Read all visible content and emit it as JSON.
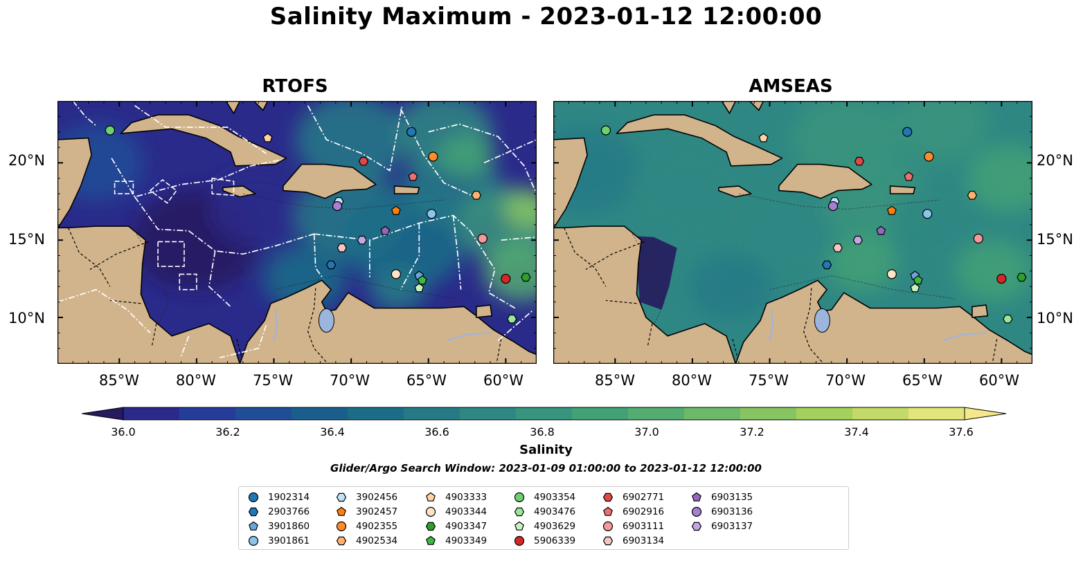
{
  "title": "Salinity Maximum - 2023-01-12 12:00:00",
  "panels": [
    {
      "title": "RTOFS"
    },
    {
      "title": "AMSEAS"
    }
  ],
  "axes": {
    "lon_ticks": [
      "85°W",
      "80°W",
      "75°W",
      "70°W",
      "65°W",
      "60°W"
    ],
    "lat_ticks": [
      "20°N",
      "15°N",
      "10°N"
    ],
    "lon_range": [
      -89,
      -58
    ],
    "lat_range": [
      7,
      24
    ]
  },
  "colorbar": {
    "label": "Salinity",
    "ticks": [
      "36.0",
      "36.2",
      "36.4",
      "36.6",
      "36.8",
      "37.0",
      "37.2",
      "37.4",
      "37.6"
    ],
    "range": [
      35.9,
      37.7
    ],
    "colormap": [
      "#271a5e",
      "#2a2a8a",
      "#253c9a",
      "#1f4e97",
      "#195e8c",
      "#1b6d87",
      "#267a86",
      "#2f8783",
      "#38947d",
      "#43a176",
      "#53ad71",
      "#6bb969",
      "#86c561",
      "#a4d05d",
      "#c3da69",
      "#e3e47b",
      "#f5e88a"
    ]
  },
  "search_window": "Glider/Argo Search Window: 2023-01-09 01:00:00 to 2023-01-12 12:00:00",
  "legend": [
    {
      "id": "1902314",
      "marker": "circle",
      "color": "#1f77b4"
    },
    {
      "id": "2903766",
      "marker": "hexagon",
      "color": "#1f77b4"
    },
    {
      "id": "3901860",
      "marker": "pentagon",
      "color": "#6aa6da"
    },
    {
      "id": "3901861",
      "marker": "circle",
      "color": "#8ec4ea"
    },
    {
      "id": "3902456",
      "marker": "hexagon",
      "color": "#bfe4f7"
    },
    {
      "id": "3902457",
      "marker": "pentagon",
      "color": "#ff7f0e"
    },
    {
      "id": "4902355",
      "marker": "circle",
      "color": "#ff8c2a"
    },
    {
      "id": "4902534",
      "marker": "hexagon",
      "color": "#ffb26e"
    },
    {
      "id": "4903333",
      "marker": "pentagon",
      "color": "#ffd3a5"
    },
    {
      "id": "4903344",
      "marker": "circle",
      "color": "#ffe3c6"
    },
    {
      "id": "4903347",
      "marker": "hexagon",
      "color": "#2ca02c"
    },
    {
      "id": "4903349",
      "marker": "pentagon",
      "color": "#3fb83f"
    },
    {
      "id": "4903354",
      "marker": "circle",
      "color": "#6fd06f"
    },
    {
      "id": "4903476",
      "marker": "hexagon",
      "color": "#98e898"
    },
    {
      "id": "4903629",
      "marker": "pentagon",
      "color": "#c7f2c0"
    },
    {
      "id": "5906339",
      "marker": "circle",
      "color": "#d62728"
    },
    {
      "id": "6902771",
      "marker": "hexagon",
      "color": "#e04848"
    },
    {
      "id": "6902916",
      "marker": "pentagon",
      "color": "#ef6f6f"
    },
    {
      "id": "6903111",
      "marker": "circle",
      "color": "#f59a9a"
    },
    {
      "id": "6903134",
      "marker": "hexagon",
      "color": "#f9c4c4"
    },
    {
      "id": "6903135",
      "marker": "pentagon",
      "color": "#9467bd"
    },
    {
      "id": "6903136",
      "marker": "circle",
      "color": "#a57fd0"
    },
    {
      "id": "6903137",
      "marker": "hexagon",
      "color": "#c3a6e6"
    }
  ],
  "floats": [
    {
      "id": "4903354",
      "lon": -85.6,
      "lat": 22.1
    },
    {
      "id": "4903333",
      "lon": -75.4,
      "lat": 21.6
    },
    {
      "id": "1902314",
      "lon": -66.1,
      "lat": 22.0
    },
    {
      "id": "4902355",
      "lon": -64.7,
      "lat": 20.4
    },
    {
      "id": "6902771",
      "lon": -69.2,
      "lat": 20.1
    },
    {
      "id": "6902916",
      "lon": -66.0,
      "lat": 19.1
    },
    {
      "id": "4902534",
      "lon": -61.9,
      "lat": 17.9
    },
    {
      "id": "3902457",
      "lon": -67.1,
      "lat": 16.9
    },
    {
      "id": "3902456",
      "lon": -70.8,
      "lat": 17.5
    },
    {
      "id": "6903136",
      "lon": -70.9,
      "lat": 17.2
    },
    {
      "id": "3901861",
      "lon": -64.8,
      "lat": 16.7
    },
    {
      "id": "6903135",
      "lon": -67.8,
      "lat": 15.6
    },
    {
      "id": "6903137",
      "lon": -69.3,
      "lat": 15.0
    },
    {
      "id": "6903111",
      "lon": -61.5,
      "lat": 15.1
    },
    {
      "id": "6903134",
      "lon": -70.6,
      "lat": 14.5
    },
    {
      "id": "2903766",
      "lon": -71.3,
      "lat": 13.4
    },
    {
      "id": "4903344",
      "lon": -67.1,
      "lat": 12.8
    },
    {
      "id": "3901860",
      "lon": -65.6,
      "lat": 12.7
    },
    {
      "id": "4903349",
      "lon": -65.4,
      "lat": 12.4
    },
    {
      "id": "4903629",
      "lon": -65.6,
      "lat": 11.9
    },
    {
      "id": "5906339",
      "lon": -60.0,
      "lat": 12.5
    },
    {
      "id": "4903347",
      "lon": -58.7,
      "lat": 12.6
    },
    {
      "id": "4903476",
      "lon": -59.6,
      "lat": 9.9
    }
  ]
}
